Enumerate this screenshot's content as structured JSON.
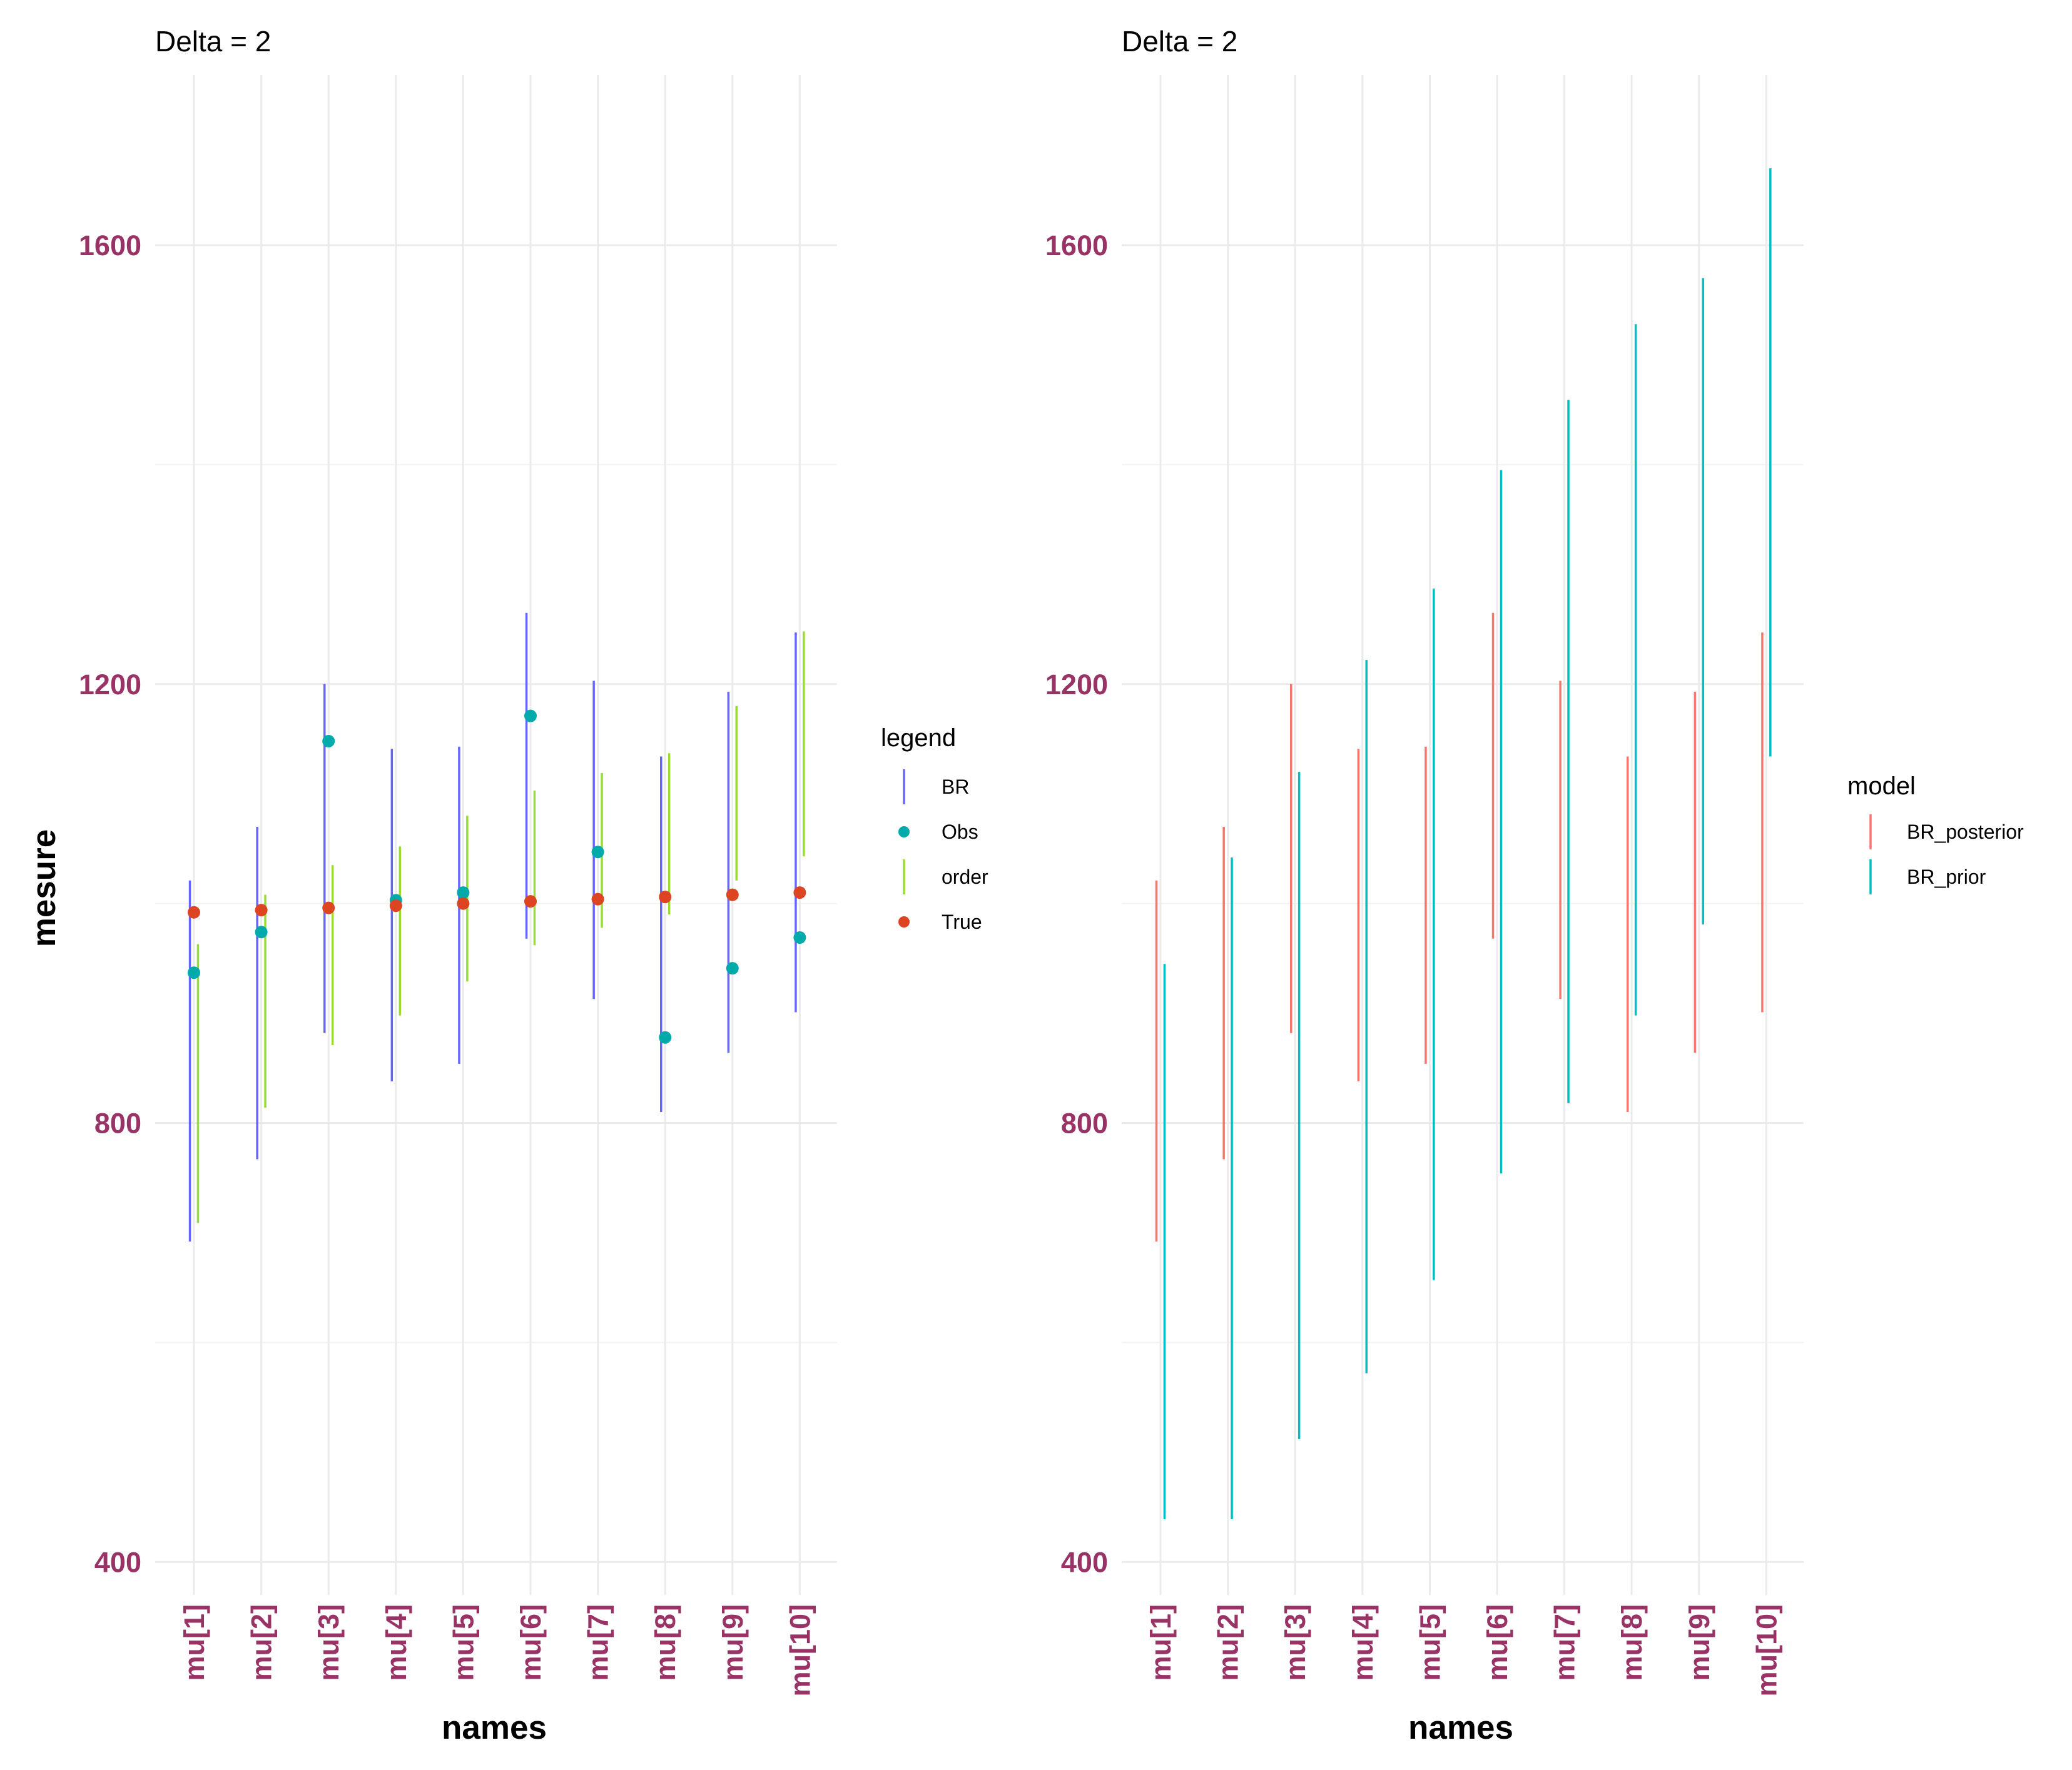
{
  "colors": {
    "tick_label": "#993366",
    "grid_major": "#ebebeb",
    "grid_minor": "#f3f3f3",
    "text": "#000000"
  },
  "chart_data": [
    {
      "type": "errorbar",
      "title": "Delta = 2",
      "xlabel": "names",
      "ylabel": "mesure",
      "ylim": [
        370,
        1755
      ],
      "yticks": [
        400,
        800,
        1200,
        1600
      ],
      "ytick_labels": [
        "400",
        "800",
        "1200",
        "1600"
      ],
      "grid": true,
      "categories": [
        "mu[1]",
        "mu[2]",
        "mu[3]",
        "mu[4]",
        "mu[5]",
        "mu[6]",
        "mu[7]",
        "mu[8]",
        "mu[9]",
        "mu[10]"
      ],
      "legend": {
        "title": "legend",
        "position": "right",
        "entries": [
          {
            "label": "BR",
            "shape": "line",
            "color": "#6666ff"
          },
          {
            "label": "Obs",
            "shape": "point",
            "color": "#00aaaa"
          },
          {
            "label": "order",
            "shape": "line",
            "color": "#99dd33"
          },
          {
            "label": "True",
            "shape": "point",
            "color": "#dd4422"
          }
        ]
      },
      "series": [
        {
          "name": "BR",
          "kind": "interval",
          "color": "#6666ff",
          "dodge": -0.06,
          "low": [
            692,
            767,
            882,
            838,
            854,
            968,
            913,
            810,
            864,
            901
          ],
          "high": [
            1021,
            1070,
            1200,
            1141,
            1143,
            1265,
            1203,
            1134,
            1193,
            1247
          ]
        },
        {
          "name": "order",
          "kind": "interval",
          "color": "#99dd33",
          "dodge": 0.06,
          "low": [
            709,
            814,
            871,
            898,
            929,
            962,
            978,
            990,
            1021,
            1043
          ],
          "high": [
            963,
            1008,
            1035,
            1052,
            1080,
            1103,
            1119,
            1137,
            1180,
            1248
          ]
        },
        {
          "name": "Obs",
          "kind": "point",
          "color": "#00aaaa",
          "values": [
            937,
            974,
            1148,
            1003,
            1010,
            1171,
            1047,
            878,
            941,
            969
          ]
        },
        {
          "name": "True",
          "kind": "point",
          "color": "#dd4422",
          "values": [
            992,
            994,
            996,
            998,
            1000,
            1002,
            1004,
            1006,
            1008,
            1010
          ]
        }
      ]
    },
    {
      "type": "errorbar",
      "title": "Delta = 2",
      "xlabel": "names",
      "ylabel": "",
      "ylim": [
        370,
        1755
      ],
      "yticks": [
        400,
        800,
        1200,
        1600
      ],
      "ytick_labels": [
        "400",
        "800",
        "1200",
        "1600"
      ],
      "grid": true,
      "categories": [
        "mu[1]",
        "mu[2]",
        "mu[3]",
        "mu[4]",
        "mu[5]",
        "mu[6]",
        "mu[7]",
        "mu[8]",
        "mu[9]",
        "mu[10]"
      ],
      "legend": {
        "title": "model",
        "position": "right",
        "entries": [
          {
            "label": "BR_posterior",
            "shape": "line",
            "color": "#f8766d"
          },
          {
            "label": "BR_prior",
            "shape": "line",
            "color": "#00bfc4"
          }
        ]
      },
      "series": [
        {
          "name": "BR_posterior",
          "kind": "interval",
          "color": "#f8766d",
          "dodge": -0.06,
          "low": [
            692,
            767,
            882,
            838,
            854,
            968,
            913,
            810,
            864,
            901
          ],
          "high": [
            1021,
            1070,
            1200,
            1141,
            1143,
            1265,
            1203,
            1134,
            1193,
            1247
          ]
        },
        {
          "name": "BR_prior",
          "kind": "interval",
          "color": "#00bfc4",
          "dodge": 0.06,
          "low": [
            439,
            439,
            512,
            572,
            657,
            754,
            818,
            898,
            981,
            1134
          ],
          "high": [
            945,
            1042,
            1120,
            1222,
            1287,
            1395,
            1459,
            1528,
            1570,
            1670
          ]
        }
      ]
    }
  ]
}
